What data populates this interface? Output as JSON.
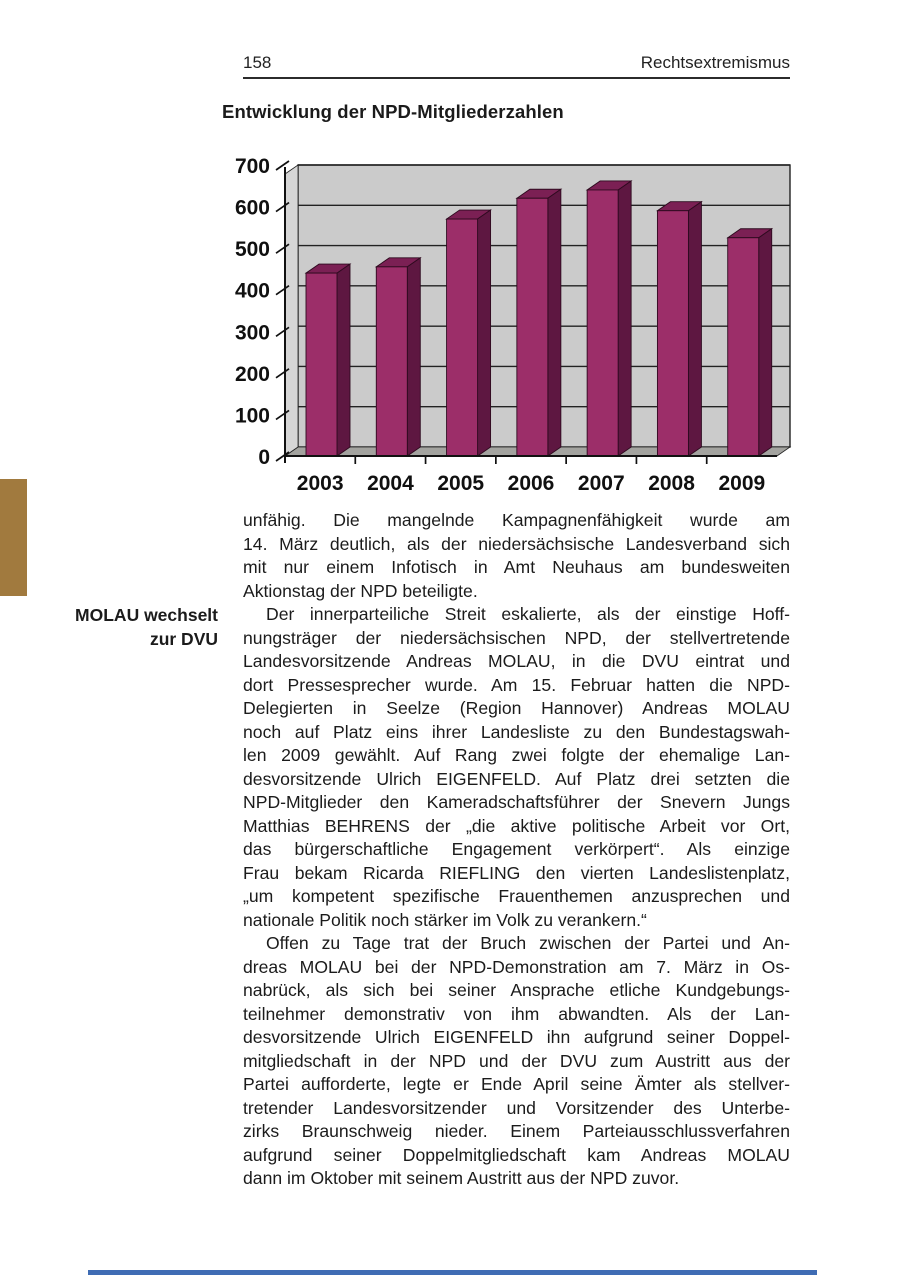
{
  "page": {
    "number": "158",
    "running_head": "Rechtsextremismus",
    "section_title": "Entwicklung der NPD-Mitgliederzahlen"
  },
  "margin_note": {
    "lines": [
      "MOLAU wechselt",
      "zur DVU"
    ]
  },
  "chart_data": {
    "type": "bar",
    "style": "3d-column",
    "title": "Entwicklung der NPD-Mitgliederzahlen",
    "categories": [
      "2003",
      "2004",
      "2005",
      "2006",
      "2007",
      "2008",
      "2009"
    ],
    "values": [
      440,
      455,
      570,
      620,
      640,
      590,
      525
    ],
    "xlabel": "",
    "ylabel": "",
    "ylim": [
      0,
      700
    ],
    "yticks": [
      0,
      100,
      200,
      300,
      400,
      500,
      600,
      700
    ],
    "grid": true,
    "legend": "none",
    "colors": {
      "bar_front": "#9c2e69",
      "bar_top": "#7b2054",
      "bar_side": "#5e1741",
      "bar_edge": "#2e0a1f",
      "wall": "#cbcbcb",
      "wall_side": "#d6d6d6",
      "floor": "#a3a39f",
      "axis": "#111111"
    }
  },
  "body": {
    "paragraphs": [
      {
        "lines": [
          "unfähig. Die mangelnde Kampagnenfähigkeit wurde am",
          "14. März deutlich, als der niedersächsische Landesverband sich",
          "mit nur einem Infotisch in Amt Neuhaus am bundesweiten",
          "Aktionstag der NPD beteiligte."
        ]
      },
      {
        "lines": [
          "Der innerparteiliche Streit eskalierte, als der einstige Hoff-",
          "nungsträger der niedersächsischen NPD, der stellvertretende",
          "Landesvorsitzende Andreas MOLAU, in die DVU eintrat und",
          "dort Pressesprecher wurde. Am 15. Februar hatten die NPD-",
          "Delegierten in Seelze (Region Hannover) Andreas MOLAU",
          "noch auf Platz eins ihrer Landesliste zu den Bundestagswah-",
          "len 2009 gewählt. Auf Rang zwei folgte der ehemalige Lan-",
          "desvorsitzende Ulrich EIGENFELD. Auf Platz drei setzten die",
          "NPD-Mitglieder den Kameradschaftsführer der Snevern Jungs",
          "Matthias BEHRENS der „die aktive politische Arbeit vor Ort,",
          "das bürgerschaftliche Engagement verkörpert“. Als einzige",
          "Frau bekam Ricarda RIEFLING den vierten Landeslistenplatz,",
          "„um kompetent spezifische Frauenthemen anzusprechen und",
          "nationale Politik noch stärker im Volk zu verankern.“"
        ]
      },
      {
        "lines": [
          "Offen zu Tage trat der Bruch zwischen der Partei und An-",
          "dreas MOLAU bei der NPD-Demonstration am 7. März in Os-",
          "nabrück, als sich bei seiner Ansprache etliche Kundgebungs-",
          "teilnehmer demonstrativ von ihm abwandten. Als der Lan-",
          "desvorsitzende Ulrich EIGENFELD ihn aufgrund seiner Doppel-",
          "mitgliedschaft in der NPD und der DVU zum Austritt aus der",
          "Partei aufforderte, legte er Ende April seine Ämter als stellver-",
          "tretender Landesvorsitzender und Vorsitzender des Unterbe-",
          "zirks Braunschweig nieder. Einem Parteiausschlussverfahren",
          "aufgrund seiner Doppelmitgliedschaft kam Andreas MOLAU",
          "dann im Oktober mit seinem Austritt aus der NPD zuvor."
        ]
      }
    ]
  },
  "decorations": {
    "edge_tab_color": "#a17a3e",
    "footer_bar_color": "#3f6cb4"
  }
}
